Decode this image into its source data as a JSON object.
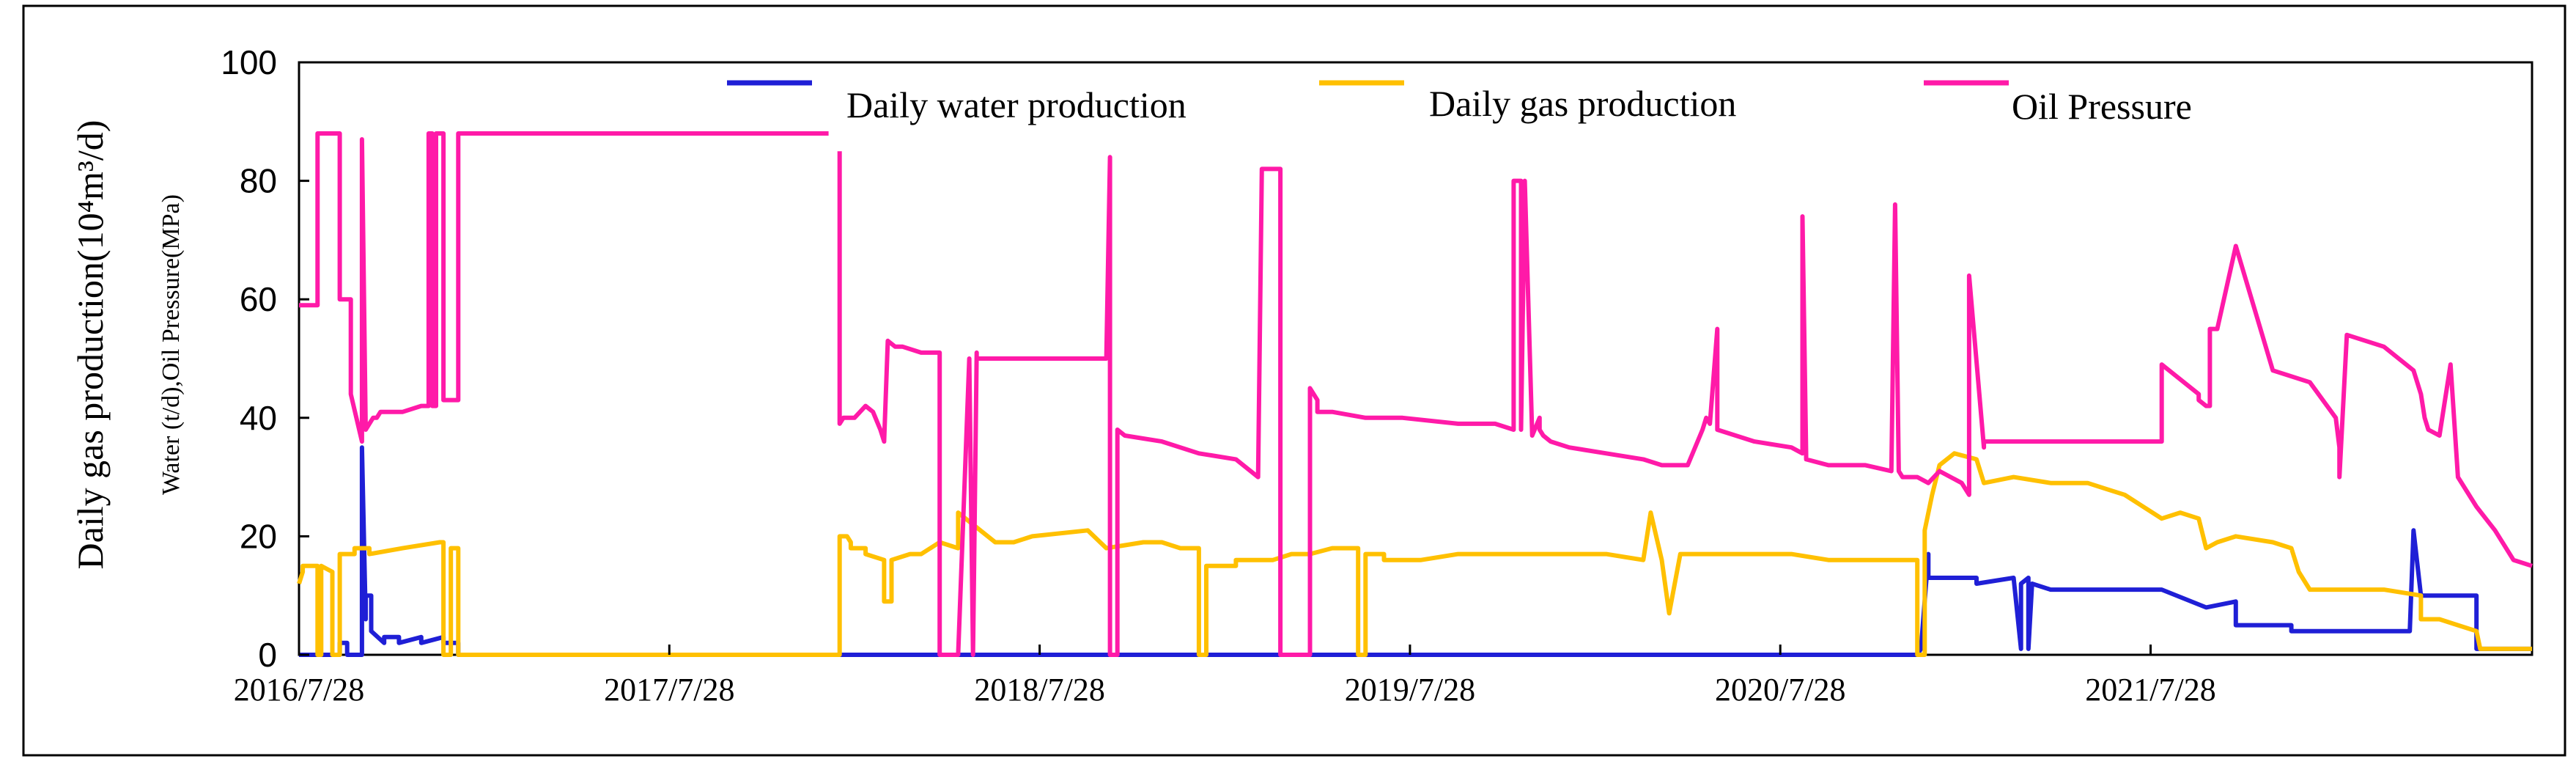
{
  "chart_data": {
    "type": "line",
    "title": "",
    "xlabel": "",
    "ylabel_primary": "Daily gas production(10⁴m³/d)",
    "ylabel_secondary": "Water (t/d),Oil Pressure(MPa)",
    "ylim": [
      0,
      100
    ],
    "y_ticks": [
      "0",
      "20",
      "40",
      "60",
      "80",
      "100"
    ],
    "x_range": [
      2016.57,
      2022.6
    ],
    "x_tick_positions": [
      2016.57,
      2017.57,
      2018.57,
      2019.57,
      2020.57,
      2021.57
    ],
    "x_tick_labels": [
      "2016/7/28",
      "2017/7/28",
      "2018/7/28",
      "2019/7/28",
      "2020/7/28",
      "2021/7/28"
    ],
    "legend_position": "top",
    "series": [
      {
        "name": "Daily water production",
        "color": "#1f1fd6",
        "x": [
          2016.57,
          2016.68,
          2016.68,
          2016.7,
          2016.7,
          2016.74,
          2016.74,
          2016.75,
          2016.75,
          2016.765,
          2016.765,
          2016.8,
          2016.8,
          2016.84,
          2016.84,
          2016.9,
          2016.9,
          2016.96,
          2016.96,
          2017.0,
          2017.0,
          2017.05,
          2017.05,
          2017.6,
          2018.4,
          2019.6,
          2020.6,
          2020.94,
          2020.95,
          2020.97,
          2020.97,
          2021.1,
          2021.1,
          2021.2,
          2021.22,
          2021.22,
          2021.24,
          2021.24,
          2021.25,
          2021.25,
          2021.3,
          2021.3,
          2021.6,
          2021.6,
          2021.72,
          2021.72,
          2021.8,
          2021.8,
          2021.95,
          2021.95,
          2022.12,
          2022.12,
          2022.27,
          2022.28,
          2022.3,
          2022.32,
          2022.32,
          2022.45,
          2022.45,
          2022.6
        ],
        "values": [
          0,
          0,
          2,
          2,
          0,
          0,
          35,
          6,
          10,
          10,
          4,
          2,
          3,
          3,
          2,
          3,
          2,
          3,
          2,
          2,
          0,
          0,
          0,
          0,
          0,
          0,
          0,
          0,
          1,
          17,
          13,
          13,
          12,
          13,
          1,
          12,
          13,
          1,
          12,
          12,
          11,
          11,
          11,
          11,
          8,
          8,
          9,
          5,
          5,
          4,
          4,
          4,
          4,
          21,
          10,
          10,
          10,
          10,
          1,
          1
        ]
      },
      {
        "name": "Daily gas production",
        "color": "#ffc000",
        "x": [
          2016.57,
          2016.58,
          2016.58,
          2016.62,
          2016.62,
          2016.63,
          2016.63,
          2016.66,
          2016.66,
          2016.68,
          2016.68,
          2016.72,
          2016.72,
          2016.76,
          2016.76,
          2016.85,
          2016.95,
          2016.96,
          2016.96,
          2016.98,
          2016.98,
          2017.0,
          2017.0,
          2017.6,
          2018.03,
          2018.03,
          2018.05,
          2018.06,
          2018.06,
          2018.1,
          2018.1,
          2018.15,
          2018.15,
          2018.17,
          2018.17,
          2018.22,
          2018.25,
          2018.3,
          2018.35,
          2018.35,
          2018.45,
          2018.5,
          2018.55,
          2018.7,
          2018.75,
          2018.85,
          2018.9,
          2018.95,
          2019.0,
          2019.0,
          2019.02,
          2019.02,
          2019.1,
          2019.1,
          2019.2,
          2019.25,
          2019.3,
          2019.36,
          2019.42,
          2019.43,
          2019.43,
          2019.45,
          2019.45,
          2019.5,
          2019.5,
          2019.6,
          2019.7,
          2019.8,
          2019.9,
          2020.0,
          2020.1,
          2020.2,
          2020.22,
          2020.25,
          2020.27,
          2020.3,
          2020.4,
          2020.5,
          2020.6,
          2020.7,
          2020.8,
          2020.9,
          2020.94,
          2020.94,
          2020.96,
          2020.96,
          2020.98,
          2021.0,
          2021.04,
          2021.1,
          2021.12,
          2021.2,
          2021.3,
          2021.4,
          2021.45,
          2021.5,
          2021.6,
          2021.65,
          2021.7,
          2021.72,
          2021.75,
          2021.8,
          2021.9,
          2021.95,
          2021.97,
          2022.0,
          2022.1,
          2022.2,
          2022.3,
          2022.3,
          2022.35,
          2022.4,
          2022.45,
          2022.46,
          2022.6
        ],
        "values": [
          12,
          14,
          15,
          15,
          0,
          0,
          15,
          14,
          0,
          0,
          17,
          17,
          18,
          18,
          17,
          18,
          19,
          19,
          0,
          0,
          18,
          18,
          0,
          0,
          0,
          20,
          20,
          19,
          18,
          18,
          17,
          16,
          9,
          9,
          16,
          17,
          17,
          19,
          18,
          24,
          19,
          19,
          20,
          21,
          18,
          19,
          19,
          18,
          18,
          0,
          0,
          15,
          15,
          16,
          16,
          17,
          17,
          18,
          18,
          18,
          0,
          0,
          17,
          17,
          16,
          16,
          17,
          17,
          17,
          17,
          17,
          16,
          24,
          16,
          7,
          17,
          17,
          17,
          17,
          16,
          16,
          16,
          16,
          0,
          0,
          21,
          27,
          32,
          34,
          33,
          29,
          30,
          29,
          29,
          28,
          27,
          23,
          24,
          23,
          18,
          19,
          20,
          19,
          18,
          14,
          11,
          11,
          11,
          10,
          6,
          6,
          5,
          4,
          1,
          1
        ]
      },
      {
        "name": "Oil Pressure",
        "color": "#ff1aa8",
        "x": [
          2016.57,
          2016.62,
          2016.62,
          2016.68,
          2016.68,
          2016.71,
          2016.71,
          2016.74,
          2016.74,
          2016.75,
          2016.76,
          2016.77,
          2016.78,
          2016.79,
          2016.8,
          2016.85,
          2016.9,
          2016.92,
          2016.92,
          2016.93,
          2016.93,
          2016.94,
          2016.94,
          2016.96,
          2016.96,
          2017.0,
          2017.0,
          2017.6,
          2018.0,
          2018.0,
          2018.03,
          2018.03,
          2018.04,
          2018.05,
          2018.07,
          2018.1,
          2018.12,
          2018.14,
          2018.15,
          2018.16,
          2018.18,
          2018.2,
          2018.25,
          2018.3,
          2018.3,
          2018.35,
          2018.38,
          2018.38,
          2018.39,
          2018.39,
          2018.4,
          2018.4,
          2018.6,
          2018.75,
          2018.76,
          2018.76,
          2018.78,
          2018.78,
          2018.8,
          2018.9,
          2019.0,
          2019.1,
          2019.16,
          2019.17,
          2019.17,
          2019.22,
          2019.22,
          2019.3,
          2019.3,
          2019.32,
          2019.32,
          2019.34,
          2019.36,
          2019.45,
          2019.55,
          2019.7,
          2019.8,
          2019.85,
          2019.85,
          2019.87,
          2019.87,
          2019.88,
          2019.9,
          2019.92,
          2019.92,
          2019.93,
          2019.95,
          2020.0,
          2020.1,
          2020.2,
          2020.25,
          2020.32,
          2020.36,
          2020.37,
          2020.38,
          2020.4,
          2020.4,
          2020.5,
          2020.6,
          2020.63,
          2020.63,
          2020.64,
          2020.7,
          2020.8,
          2020.87,
          2020.88,
          2020.89,
          2020.9,
          2020.94,
          2020.97,
          2021.0,
          2021.06,
          2021.08,
          2021.08,
          2021.12,
          2021.12,
          2021.3,
          2021.6,
          2021.6,
          2021.7,
          2021.7,
          2021.72,
          2021.73,
          2021.73,
          2021.75,
          2021.8,
          2021.9,
          2022.0,
          2022.07,
          2022.08,
          2022.08,
          2022.1,
          2022.2,
          2022.28,
          2022.3,
          2022.31,
          2022.32,
          2022.35,
          2022.38,
          2022.4,
          2022.45,
          2022.5,
          2022.55,
          2022.6
        ],
        "values": [
          59,
          59,
          88,
          88,
          60,
          60,
          44,
          36,
          87,
          38,
          39,
          40,
          40,
          41,
          41,
          41,
          42,
          42,
          88,
          88,
          42,
          42,
          88,
          88,
          43,
          43,
          88,
          88,
          88,
          null,
          85,
          39,
          40,
          40,
          40,
          42,
          41,
          38,
          36,
          53,
          52,
          52,
          51,
          51,
          0,
          0,
          50,
          50,
          0,
          0,
          51,
          50,
          50,
          50,
          84,
          0,
          0,
          38,
          37,
          36,
          34,
          33,
          30,
          82,
          82,
          82,
          0,
          0,
          45,
          43,
          41,
          41,
          41,
          40,
          40,
          39,
          39,
          38,
          80,
          80,
          38,
          80,
          37,
          40,
          38,
          37,
          36,
          35,
          34,
          33,
          32,
          32,
          38,
          40,
          39,
          55,
          38,
          36,
          35,
          34,
          74,
          33,
          32,
          32,
          31,
          76,
          31,
          30,
          30,
          29,
          31,
          29,
          27,
          64,
          35,
          36,
          36,
          36,
          49,
          44,
          43,
          42,
          42,
          55,
          55,
          69,
          48,
          46,
          40,
          35,
          30,
          54,
          52,
          48,
          44,
          40,
          38,
          37,
          49,
          30,
          25,
          21,
          16,
          15
        ]
      }
    ]
  }
}
